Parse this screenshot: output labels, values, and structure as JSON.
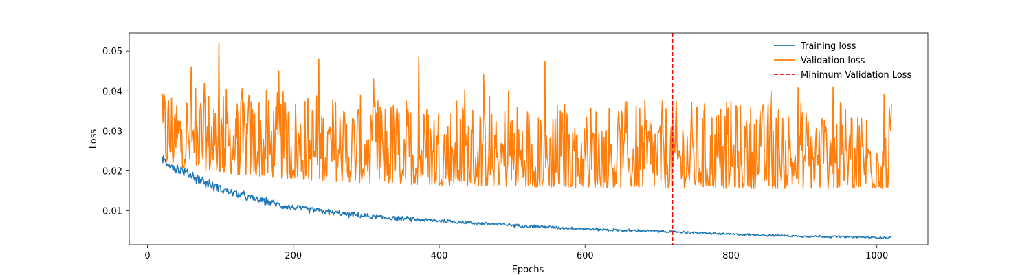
{
  "chart_data": {
    "type": "line",
    "title": "",
    "xlabel": "Epochs",
    "ylabel": "Loss",
    "xlim": [
      -25,
      1070
    ],
    "ylim": [
      0.0015,
      0.0545
    ],
    "x_ticks": [
      0,
      200,
      400,
      600,
      800,
      1000
    ],
    "y_ticks": [
      0.01,
      0.02,
      0.03,
      0.04,
      0.05
    ],
    "x_tick_labels": [
      "0",
      "200",
      "400",
      "600",
      "800",
      "1000"
    ],
    "y_tick_labels": [
      "0.01",
      "0.02",
      "0.03",
      "0.04",
      "0.05"
    ],
    "grid": false,
    "legend_position": "upper right",
    "x_range": [
      20,
      1020
    ],
    "series": [
      {
        "name": "Training loss",
        "color": "#1f77b4",
        "style": "solid",
        "trend_points": [
          [
            20,
            0.023
          ],
          [
            40,
            0.0205
          ],
          [
            60,
            0.019
          ],
          [
            80,
            0.017
          ],
          [
            100,
            0.0155
          ],
          [
            120,
            0.0143
          ],
          [
            150,
            0.0128
          ],
          [
            180,
            0.0115
          ],
          [
            200,
            0.0108
          ],
          [
            250,
            0.0096
          ],
          [
            300,
            0.0086
          ],
          [
            350,
            0.008
          ],
          [
            400,
            0.0075
          ],
          [
            450,
            0.0069
          ],
          [
            500,
            0.0064
          ],
          [
            550,
            0.0059
          ],
          [
            600,
            0.0055
          ],
          [
            650,
            0.0051
          ],
          [
            700,
            0.0049
          ],
          [
            750,
            0.0045
          ],
          [
            800,
            0.0041
          ],
          [
            850,
            0.0039
          ],
          [
            900,
            0.0036
          ],
          [
            950,
            0.0035
          ],
          [
            1000,
            0.0033
          ],
          [
            1020,
            0.0033
          ]
        ],
        "noise_amplitude": 0.0012
      },
      {
        "name": "Validation loss",
        "color": "#ff7f0e",
        "style": "solid",
        "typical_range": [
          0.0135,
          0.0485
        ],
        "peaks": [
          [
            60,
            0.046
          ],
          [
            98,
            0.052
          ],
          [
            180,
            0.045
          ],
          [
            310,
            0.043
          ],
          [
            372,
            0.0485
          ],
          [
            495,
            0.04
          ],
          [
            855,
            0.04
          ],
          [
            940,
            0.041
          ]
        ]
      },
      {
        "name": "Minimum Validation Loss",
        "color": "#ff0000",
        "style": "dashed",
        "x": 720
      }
    ]
  }
}
